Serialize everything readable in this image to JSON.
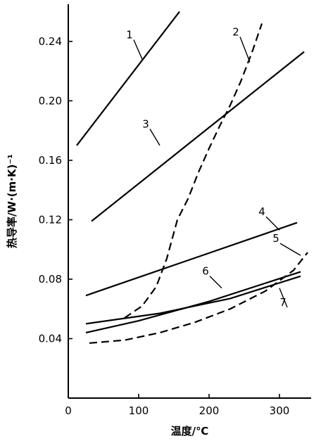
{
  "chart_data": {
    "type": "line",
    "xlabel": "温度/℃",
    "ylabel": "热导率/W·(m·K)⁻¹",
    "xlim": [
      0,
      345
    ],
    "ylim": [
      0,
      0.265
    ],
    "x_ticks": [
      0,
      100,
      200,
      300
    ],
    "y_ticks": [
      0.04,
      0.08,
      0.12,
      0.16,
      0.2,
      0.24
    ],
    "x_tick_labels": [
      "0",
      "100",
      "200",
      "300"
    ],
    "y_tick_labels": [
      "0.04",
      "0.08",
      "0.12",
      "0.16",
      "0.20",
      "0.24"
    ],
    "grid": false,
    "series": [
      {
        "name": "1",
        "dash": false,
        "points": [
          [
            12,
            0.17
          ],
          [
            158,
            0.26
          ]
        ]
      },
      {
        "name": "2",
        "dash": true,
        "points": [
          [
            80,
            0.054
          ],
          [
            105,
            0.062
          ],
          [
            125,
            0.075
          ],
          [
            140,
            0.094
          ],
          [
            155,
            0.12
          ],
          [
            170,
            0.134
          ],
          [
            185,
            0.152
          ],
          [
            200,
            0.168
          ],
          [
            215,
            0.183
          ],
          [
            230,
            0.197
          ],
          [
            245,
            0.213
          ],
          [
            262,
            0.234
          ],
          [
            275,
            0.252
          ]
        ]
      },
      {
        "name": "3",
        "dash": false,
        "points": [
          [
            33,
            0.119
          ],
          [
            335,
            0.233
          ]
        ]
      },
      {
        "name": "4",
        "dash": false,
        "points": [
          [
            25,
            0.069
          ],
          [
            325,
            0.118
          ]
        ]
      },
      {
        "name": "5",
        "dash": true,
        "points": [
          [
            30,
            0.037
          ],
          [
            80,
            0.039
          ],
          [
            130,
            0.044
          ],
          [
            180,
            0.051
          ],
          [
            230,
            0.06
          ],
          [
            280,
            0.072
          ],
          [
            320,
            0.086
          ],
          [
            340,
            0.098
          ]
        ]
      },
      {
        "name": "6",
        "dash": false,
        "points": [
          [
            25,
            0.044
          ],
          [
            100,
            0.052
          ],
          [
            200,
            0.065
          ],
          [
            330,
            0.085
          ]
        ]
      },
      {
        "name": "7",
        "dash": false,
        "points": [
          [
            25,
            0.05
          ],
          [
            130,
            0.057
          ],
          [
            230,
            0.067
          ],
          [
            330,
            0.082
          ]
        ]
      }
    ],
    "annotations": [
      {
        "text": "1",
        "at": [
          87,
          0.242
        ],
        "leader_to": [
          105,
          0.228
        ]
      },
      {
        "text": "2",
        "at": [
          238,
          0.244
        ],
        "leader_to": [
          258,
          0.226
        ]
      },
      {
        "text": "3",
        "at": [
          110,
          0.182
        ],
        "leader_to": [
          130,
          0.17
        ]
      },
      {
        "text": "4",
        "at": [
          275,
          0.123
        ],
        "leader_to": [
          300,
          0.113
        ]
      },
      {
        "text": "5",
        "at": [
          295,
          0.105
        ],
        "leader_to": [
          330,
          0.096
        ]
      },
      {
        "text": "6",
        "at": [
          195,
          0.083
        ],
        "leader_to": [
          218,
          0.074
        ]
      },
      {
        "text": "7",
        "at": [
          305,
          0.062
        ],
        "leader_to": [
          300,
          0.074
        ]
      }
    ]
  }
}
